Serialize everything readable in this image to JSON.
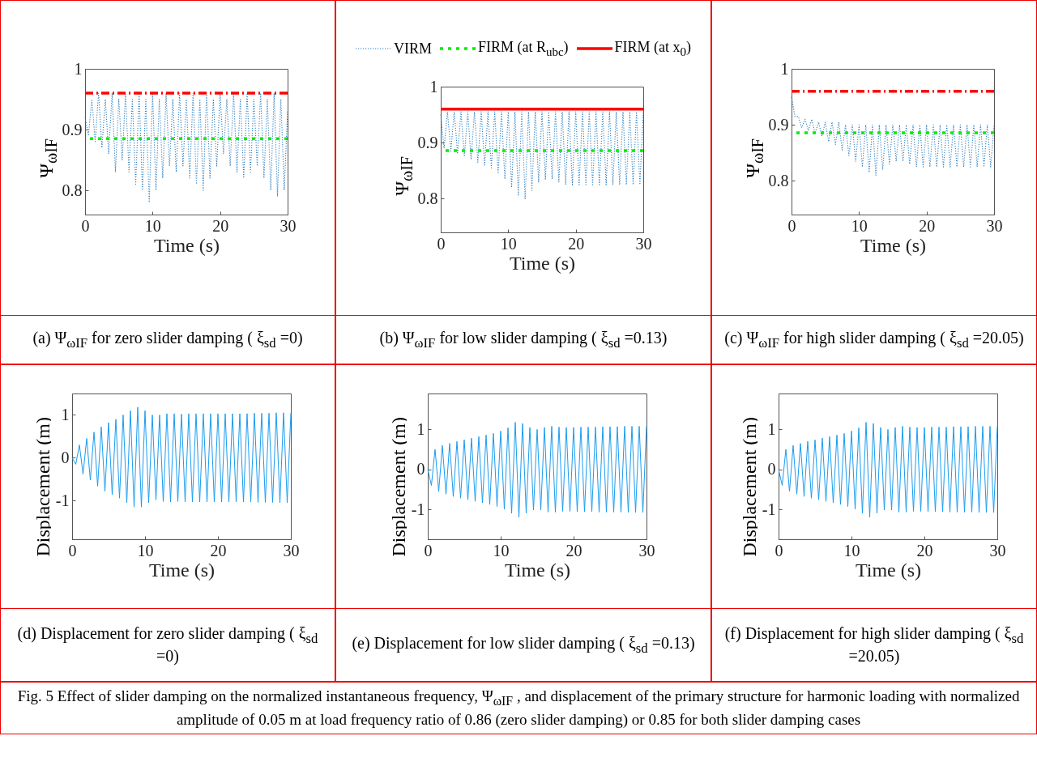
{
  "chart_data": [
    {
      "type": "line",
      "title": "(a) Ψ$_{ωIF}$ for zero slider damping ( ξ$_{sd}$ =0)",
      "xlabel": "Time (s)",
      "ylabel": "Ψ$_{ωIF}$",
      "x": [
        0,
        0.5,
        1,
        1.5,
        2,
        2.5,
        3,
        3.5,
        4,
        4.5,
        5,
        5.5,
        6,
        6.5,
        7,
        7.5,
        8,
        8.5,
        9,
        9.5,
        10,
        10.5,
        11,
        11.5,
        12,
        12.5,
        13,
        13.5,
        14,
        14.5,
        15,
        15.5,
        16,
        16.5,
        17,
        17.5,
        18,
        18.5,
        19,
        19.5,
        20,
        20.5,
        21,
        21.5,
        22,
        22.5,
        23,
        23.5,
        24,
        24.5,
        25,
        25.5,
        26,
        26.5,
        27,
        27.5,
        28,
        28.5,
        29,
        29.5,
        30
      ],
      "xlim": [
        0,
        30
      ],
      "xticks": [
        0,
        10,
        20,
        30
      ],
      "ylim": [
        0.76,
        1
      ],
      "yticks": [
        0.8,
        0.9,
        1
      ],
      "series": [
        {
          "color": "#2f7fc1",
          "line_style": "dotted",
          "values": [
            0.92,
            0.89,
            0.95,
            0.88,
            0.96,
            0.87,
            0.95,
            0.86,
            0.96,
            0.83,
            0.95,
            0.85,
            0.96,
            0.83,
            0.95,
            0.81,
            0.96,
            0.8,
            0.95,
            0.78,
            0.96,
            0.8,
            0.95,
            0.82,
            0.96,
            0.84,
            0.95,
            0.83,
            0.96,
            0.84,
            0.95,
            0.82,
            0.96,
            0.81,
            0.95,
            0.8,
            0.96,
            0.82,
            0.95,
            0.84,
            0.96,
            0.86,
            0.95,
            0.84,
            0.96,
            0.83,
            0.95,
            0.82,
            0.96,
            0.83,
            0.95,
            0.84,
            0.96,
            0.82,
            0.95,
            0.8,
            0.96,
            0.79,
            0.95,
            0.8,
            0.93
          ]
        }
      ],
      "ref_lines": [
        {
          "axis": "y",
          "value": 0.885,
          "color": "#00ee00",
          "line_style": "dotted"
        },
        {
          "axis": "y",
          "value": 0.96,
          "color": "#ff0000",
          "line_style": "dashed"
        }
      ]
    },
    {
      "type": "line",
      "title": "(b) Ψ$_{ωIF}$ for low slider damping ( ξ$_{sd}$ =0.13)",
      "xlabel": "Time (s)",
      "ylabel": "Ψ$_{ωIF}$",
      "legend": "top",
      "x": [
        0,
        0.5,
        1,
        1.5,
        2,
        2.5,
        3,
        3.5,
        4,
        4.5,
        5,
        5.5,
        6,
        6.5,
        7,
        7.5,
        8,
        8.5,
        9,
        9.5,
        10,
        10.5,
        11,
        11.5,
        12,
        12.5,
        13,
        13.5,
        14,
        14.5,
        15,
        15.5,
        16,
        16.5,
        17,
        17.5,
        18,
        18.5,
        19,
        19.5,
        20,
        20.5,
        21,
        21.5,
        22,
        22.5,
        23,
        23.5,
        24,
        24.5,
        25,
        25.5,
        26,
        26.5,
        27,
        27.5,
        28,
        28.5,
        29,
        29.5,
        30
      ],
      "xlim": [
        0,
        30
      ],
      "xticks": [
        0,
        10,
        20,
        30
      ],
      "ylim": [
        0.74,
        1
      ],
      "yticks": [
        0.8,
        0.9,
        1
      ],
      "series": [
        {
          "name": "VIRM",
          "color": "#2f7fc1",
          "line_style": "dotted",
          "values": [
            0.95,
            0.89,
            0.955,
            0.885,
            0.955,
            0.88,
            0.955,
            0.875,
            0.955,
            0.87,
            0.955,
            0.865,
            0.955,
            0.86,
            0.955,
            0.855,
            0.955,
            0.845,
            0.955,
            0.835,
            0.955,
            0.82,
            0.955,
            0.805,
            0.955,
            0.8,
            0.955,
            0.815,
            0.955,
            0.83,
            0.955,
            0.835,
            0.955,
            0.835,
            0.955,
            0.83,
            0.955,
            0.825,
            0.955,
            0.825,
            0.955,
            0.825,
            0.955,
            0.825,
            0.955,
            0.825,
            0.955,
            0.825,
            0.955,
            0.825,
            0.955,
            0.825,
            0.955,
            0.825,
            0.955,
            0.825,
            0.955,
            0.825,
            0.955,
            0.825,
            0.955
          ]
        }
      ],
      "ref_lines": [
        {
          "axis": "y",
          "value": 0.886,
          "label": "FIRM (at R$_{ubc}$)",
          "color": "#00ee00",
          "line_style": "dotted"
        },
        {
          "axis": "y",
          "value": 0.96,
          "label": "FIRM (at x$_{0}$)",
          "color": "#ff0000",
          "line_style": "solid"
        }
      ]
    },
    {
      "type": "line",
      "title": "(c) Ψ$_{ωIF}$ for high slider damping ( ξ$_{sd}$ =20.05)",
      "xlabel": "Time (s)",
      "ylabel": "Ψ$_{ωIF}$",
      "x": [
        0,
        0.5,
        1,
        1.5,
        2,
        2.5,
        3,
        3.5,
        4,
        4.5,
        5,
        5.5,
        6,
        6.5,
        7,
        7.5,
        8,
        8.5,
        9,
        9.5,
        10,
        10.5,
        11,
        11.5,
        12,
        12.5,
        13,
        13.5,
        14,
        14.5,
        15,
        15.5,
        16,
        16.5,
        17,
        17.5,
        18,
        18.5,
        19,
        19.5,
        20,
        20.5,
        21,
        21.5,
        22,
        22.5,
        23,
        23.5,
        24,
        24.5,
        25,
        25.5,
        26,
        26.5,
        27,
        27.5,
        28,
        28.5,
        29,
        29.5,
        30
      ],
      "xlim": [
        0,
        30
      ],
      "xticks": [
        0,
        10,
        20,
        30
      ],
      "ylim": [
        0.74,
        1
      ],
      "yticks": [
        0.8,
        0.9,
        1
      ],
      "series": [
        {
          "color": "#2f7fc1",
          "line_style": "dotted",
          "values": [
            0.95,
            0.915,
            0.915,
            0.895,
            0.91,
            0.89,
            0.91,
            0.885,
            0.905,
            0.88,
            0.905,
            0.87,
            0.905,
            0.865,
            0.905,
            0.855,
            0.9,
            0.845,
            0.9,
            0.835,
            0.9,
            0.825,
            0.9,
            0.815,
            0.9,
            0.81,
            0.9,
            0.82,
            0.9,
            0.83,
            0.9,
            0.835,
            0.9,
            0.835,
            0.9,
            0.83,
            0.9,
            0.825,
            0.9,
            0.825,
            0.9,
            0.825,
            0.9,
            0.825,
            0.9,
            0.825,
            0.9,
            0.825,
            0.9,
            0.825,
            0.9,
            0.825,
            0.9,
            0.825,
            0.9,
            0.825,
            0.9,
            0.825,
            0.9,
            0.825,
            0.9
          ]
        }
      ],
      "ref_lines": [
        {
          "axis": "y",
          "value": 0.886,
          "color": "#00ee00",
          "line_style": "dotted"
        },
        {
          "axis": "y",
          "value": 0.96,
          "color": "#ff0000",
          "line_style": "dashed"
        }
      ]
    },
    {
      "type": "line",
      "title": "(d) Displacement for zero slider damping ( ξ$_{sd}$ =0)",
      "xlabel": "Time (s)",
      "ylabel": "Displacement (m)",
      "x": [
        0,
        0.5,
        1,
        1.5,
        2,
        2.5,
        3,
        3.5,
        4,
        4.5,
        5,
        5.5,
        6,
        6.5,
        7,
        7.5,
        8,
        8.5,
        9,
        9.5,
        10,
        10.5,
        11,
        11.5,
        12,
        12.5,
        13,
        13.5,
        14,
        14.5,
        15,
        15.5,
        16,
        16.5,
        17,
        17.5,
        18,
        18.5,
        19,
        19.5,
        20,
        20.5,
        21,
        21.5,
        22,
        22.5,
        23,
        23.5,
        24,
        24.5,
        25,
        25.5,
        26,
        26.5,
        27,
        27.5,
        28,
        28.5,
        29,
        29.5,
        30
      ],
      "xlim": [
        0,
        30
      ],
      "xticks": [
        0,
        10,
        20,
        30
      ],
      "ylim": [
        -1.9,
        1.5
      ],
      "yticks": [
        -1,
        0,
        1
      ],
      "series": [
        {
          "color": "#1a9cf0",
          "line_style": "solid",
          "values": [
            0,
            -0.15,
            0.3,
            -0.38,
            0.45,
            -0.52,
            0.6,
            -0.66,
            0.72,
            -0.78,
            0.82,
            -0.86,
            0.9,
            -0.94,
            1,
            -1.05,
            1.1,
            -1.15,
            1.18,
            -1.15,
            1.1,
            -1.05,
            1,
            -0.98,
            1,
            -1.02,
            1.03,
            -1.03,
            1.03,
            -1.02,
            1.02,
            -1.03,
            1.03,
            -1.03,
            1.03,
            -1.03,
            1.03,
            -1.03,
            1.03,
            -1.03,
            1.03,
            -1.03,
            1.03,
            -1.03,
            1.03,
            -1.03,
            1.03,
            -1.03,
            1.03,
            -1.03,
            1.04,
            -1.04,
            1.04,
            -1.04,
            1.04,
            -1.04,
            1.05,
            -1.05,
            1.05,
            -1.05,
            1.05
          ]
        }
      ]
    },
    {
      "type": "line",
      "title": "(e) Displacement for low slider damping ( ξ$_{sd}$ =0.13)",
      "xlabel": "Time (s)",
      "ylabel": "Displacement (m)",
      "x": [
        0,
        0.5,
        1,
        1.5,
        2,
        2.5,
        3,
        3.5,
        4,
        4.5,
        5,
        5.5,
        6,
        6.5,
        7,
        7.5,
        8,
        8.5,
        9,
        9.5,
        10,
        10.5,
        11,
        11.5,
        12,
        12.5,
        13,
        13.5,
        14,
        14.5,
        15,
        15.5,
        16,
        16.5,
        17,
        17.5,
        18,
        18.5,
        19,
        19.5,
        20,
        20.5,
        21,
        21.5,
        22,
        22.5,
        23,
        23.5,
        24,
        24.5,
        25,
        25.5,
        26,
        26.5,
        27,
        27.5,
        28,
        28.5,
        29,
        29.5,
        30
      ],
      "xlim": [
        0,
        30
      ],
      "xticks": [
        0,
        10,
        20,
        30
      ],
      "ylim": [
        -1.75,
        1.9
      ],
      "yticks": [
        -1,
        0,
        1
      ],
      "series": [
        {
          "color": "#1a9cf0",
          "line_style": "solid",
          "values": [
            0,
            -0.4,
            0.5,
            -0.55,
            0.6,
            -0.62,
            0.65,
            -0.68,
            0.7,
            -0.72,
            0.74,
            -0.76,
            0.78,
            -0.8,
            0.82,
            -0.84,
            0.86,
            -0.88,
            0.9,
            -0.93,
            0.96,
            -1,
            1.04,
            -1.1,
            1.18,
            -1.2,
            1.15,
            -1.1,
            1.05,
            -1.02,
            1,
            -1.02,
            1.05,
            -1.07,
            1.08,
            -1.07,
            1.06,
            -1.05,
            1.05,
            -1.05,
            1.05,
            -1.06,
            1.06,
            -1.06,
            1.06,
            -1.06,
            1.06,
            -1.07,
            1.07,
            -1.07,
            1.07,
            -1.07,
            1.07,
            -1.07,
            1.08,
            -1.08,
            1.08,
            -1.08,
            1.08,
            -1.08,
            1.08
          ]
        }
      ]
    },
    {
      "type": "line",
      "title": "(f) Displacement for high slider damping ( ξ$_{sd}$ =20.05)",
      "xlabel": "Time (s)",
      "ylabel": "Displacement (m)",
      "x": [
        0,
        0.5,
        1,
        1.5,
        2,
        2.5,
        3,
        3.5,
        4,
        4.5,
        5,
        5.5,
        6,
        6.5,
        7,
        7.5,
        8,
        8.5,
        9,
        9.5,
        10,
        10.5,
        11,
        11.5,
        12,
        12.5,
        13,
        13.5,
        14,
        14.5,
        15,
        15.5,
        16,
        16.5,
        17,
        17.5,
        18,
        18.5,
        19,
        19.5,
        20,
        20.5,
        21,
        21.5,
        22,
        22.5,
        23,
        23.5,
        24,
        24.5,
        25,
        25.5,
        26,
        26.5,
        27,
        27.5,
        28,
        28.5,
        29,
        29.5,
        30
      ],
      "xlim": [
        0,
        30
      ],
      "xticks": [
        0,
        10,
        20,
        30
      ],
      "ylim": [
        -1.75,
        1.9
      ],
      "yticks": [
        -1,
        0,
        1
      ],
      "series": [
        {
          "color": "#1a9cf0",
          "line_style": "solid",
          "values": [
            0,
            -0.4,
            0.5,
            -0.55,
            0.6,
            -0.62,
            0.65,
            -0.68,
            0.7,
            -0.72,
            0.74,
            -0.76,
            0.78,
            -0.8,
            0.82,
            -0.84,
            0.86,
            -0.88,
            0.9,
            -0.93,
            0.96,
            -1,
            1.04,
            -1.1,
            1.18,
            -1.2,
            1.15,
            -1.1,
            1.05,
            -1.02,
            1,
            -1.02,
            1.05,
            -1.07,
            1.08,
            -1.07,
            1.06,
            -1.05,
            1.05,
            -1.05,
            1.05,
            -1.06,
            1.06,
            -1.06,
            1.06,
            -1.06,
            1.06,
            -1.07,
            1.07,
            -1.07,
            1.07,
            -1.07,
            1.07,
            -1.07,
            1.08,
            -1.08,
            1.08,
            -1.08,
            1.08,
            -1.08,
            1.08
          ]
        }
      ]
    },
    {
      "type": "other",
      "title": "Fig. 5 Effect of slider damping on the normalized instantaneous frequency, Ψ$_{ωIF}$ , and displacement of the primary structure for harmonic loading with normalized amplitude of 0.05 m at load frequency ratio of 0.86 (zero slider damping) or 0.85 for both slider damping cases"
    }
  ]
}
